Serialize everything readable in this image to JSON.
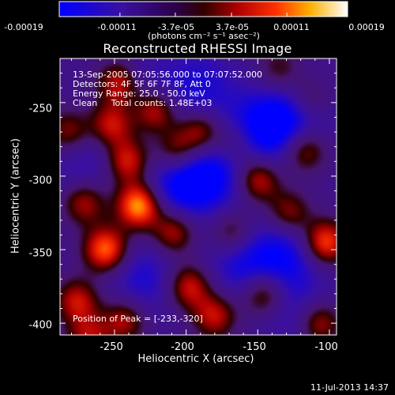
{
  "colorbar": {
    "ticks": [
      "-0.00019",
      "-0.00011",
      "-3.7e-05",
      "3.7e-05",
      "0.00011",
      "0.00019"
    ],
    "units": "(photons cm⁻² s⁻¹ asec⁻²)"
  },
  "chart_data": {
    "type": "heatmap",
    "title": "Reconstructed RHESSI Image",
    "xlabel": "Heliocentric X (arcsec)",
    "ylabel": "Heliocentric Y (arcsec)",
    "xlim": [
      -288,
      -95
    ],
    "ylim": [
      -408,
      -220
    ],
    "x_ticks": [
      "-250",
      "-200",
      "-150",
      "-100"
    ],
    "y_ticks": [
      "-250",
      "-300",
      "-350",
      "-400"
    ],
    "colorbar_range": [
      -0.00019,
      0.00019
    ],
    "peak": [
      -233,
      -320
    ],
    "sources": [
      {
        "x": -233,
        "y": -320,
        "value": 0.00019
      },
      {
        "x": -256,
        "y": -350,
        "value": 0.00016
      },
      {
        "x": -241,
        "y": -290,
        "value": 0.00012
      },
      {
        "x": -252,
        "y": -265,
        "value": 0.00011
      },
      {
        "x": -247,
        "y": -237,
        "value": 0.00012
      },
      {
        "x": -271,
        "y": -318,
        "value": 9e-05
      },
      {
        "x": -276,
        "y": -385,
        "value": 0.0001
      },
      {
        "x": -243,
        "y": -398,
        "value": 9e-05
      },
      {
        "x": -222,
        "y": -255,
        "value": 0.00012
      },
      {
        "x": -207,
        "y": -283,
        "value": 9e-05
      },
      {
        "x": -190,
        "y": -270,
        "value": 0.0001
      },
      {
        "x": -209,
        "y": -338,
        "value": 0.0001
      },
      {
        "x": -198,
        "y": -375,
        "value": 0.00011
      },
      {
        "x": -180,
        "y": -395,
        "value": 0.0001
      },
      {
        "x": -168,
        "y": -338,
        "value": 7e-05
      },
      {
        "x": -150,
        "y": -302,
        "value": 0.00012
      },
      {
        "x": -165,
        "y": -278,
        "value": 6e-05
      },
      {
        "x": -146,
        "y": -380,
        "value": 0.0001
      },
      {
        "x": -128,
        "y": -325,
        "value": 8e-05
      },
      {
        "x": -117,
        "y": -282,
        "value": 0.0001
      },
      {
        "x": -103,
        "y": -345,
        "value": 0.00015
      },
      {
        "x": -107,
        "y": -400,
        "value": 0.00011
      },
      {
        "x": -114,
        "y": -248,
        "value": 6e-05
      },
      {
        "x": -282,
        "y": -270,
        "value": 8e-05
      },
      {
        "x": -268,
        "y": -410,
        "value": 8e-05
      },
      {
        "x": -135,
        "y": -228,
        "value": 5e-05
      },
      {
        "x": -230,
        "y": -370,
        "value": -8e-05
      },
      {
        "x": -205,
        "y": -305,
        "value": -0.00012
      },
      {
        "x": -180,
        "y": -300,
        "value": -0.0001
      },
      {
        "x": -150,
        "y": -270,
        "value": -0.00012
      },
      {
        "x": -125,
        "y": -260,
        "value": -0.00011
      },
      {
        "x": -160,
        "y": -360,
        "value": -9e-05
      },
      {
        "x": -130,
        "y": -355,
        "value": -0.0001
      },
      {
        "x": -270,
        "y": -290,
        "value": -6e-05
      },
      {
        "x": -230,
        "y": -240,
        "value": -6e-05
      },
      {
        "x": -190,
        "y": -240,
        "value": -8e-05
      },
      {
        "x": -120,
        "y": -395,
        "value": -6e-05
      }
    ]
  },
  "annotations": {
    "time": "13-Sep-2005 07:05:56.000 to 07:07:52.000",
    "detectors": "Detectors: 4F 5F 6F 7F 8F, Att 0",
    "energy": "Energy Range: 25.0 - 50.0 keV",
    "clean": "Clean     Total counts: 1.48E+03",
    "peak": "Position of Peak = [-233,-320]"
  },
  "footer": {
    "date": "11-Jul-2013 14:37"
  }
}
